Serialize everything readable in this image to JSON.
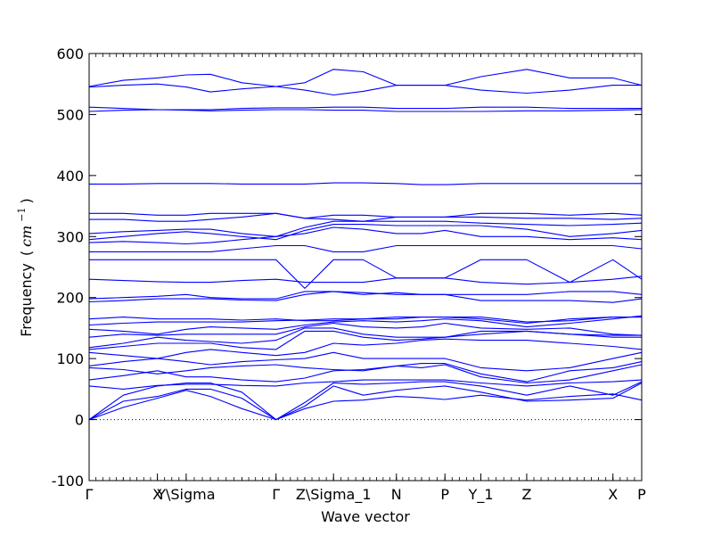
{
  "chart_data": {
    "type": "line",
    "xlabel": "Wave vector",
    "ylabel": {
      "text": "Frequency",
      "unit_open": "(",
      "unit_italic": "cm",
      "unit_sup": "−1",
      "unit_close": ")"
    },
    "ylim": [
      -100,
      600
    ],
    "yticks": [
      -100,
      0,
      100,
      200,
      300,
      400,
      500,
      600
    ],
    "xlim": [
      0,
      6.15
    ],
    "path_labels": [
      {
        "label": "Γ",
        "x": 0
      },
      {
        "label": "X",
        "x": 0.76
      },
      {
        "label": "Y\\Sigma",
        "x": 1.08
      },
      {
        "label": "Γ",
        "x": 2.08
      },
      {
        "label": "Z\\Sigma_1",
        "x": 2.72
      },
      {
        "label": "N",
        "x": 3.42
      },
      {
        "label": "P",
        "x": 3.96
      },
      {
        "label": "Y_1",
        "x": 4.36
      },
      {
        "label": "Z",
        "x": 4.87
      },
      {
        "label": "X",
        "x": 5.83
      },
      {
        "label": "P",
        "x": 6.15
      }
    ],
    "zero_line": 0,
    "line_color": "#0000ff",
    "x": [
      0,
      0.38,
      0.76,
      1.08,
      1.35,
      1.7,
      2.08,
      2.4,
      2.72,
      3.05,
      3.42,
      3.7,
      3.96,
      4.36,
      4.87,
      5.35,
      5.83,
      6.15
    ],
    "series": [
      {
        "values": [
          0,
          20,
          35,
          48,
          38,
          18,
          0,
          18,
          30,
          32,
          38,
          36,
          33,
          40,
          32,
          38,
          42,
          32
        ]
      },
      {
        "values": [
          0,
          30,
          38,
          50,
          50,
          35,
          0,
          22,
          55,
          40,
          48,
          52,
          55,
          45,
          30,
          32,
          35,
          60
        ]
      },
      {
        "values": [
          0,
          40,
          55,
          60,
          60,
          45,
          0,
          28,
          60,
          58,
          60,
          62,
          62,
          55,
          40,
          55,
          40,
          62
        ]
      },
      {
        "values": [
          55,
          50,
          56,
          58,
          58,
          56,
          55,
          60,
          62,
          65,
          65,
          65,
          65,
          60,
          55,
          60,
          62,
          65
        ]
      },
      {
        "values": [
          65,
          72,
          80,
          70,
          70,
          65,
          62,
          68,
          80,
          82,
          88,
          85,
          90,
          70,
          60,
          65,
          80,
          90
        ]
      },
      {
        "values": [
          85,
          82,
          75,
          80,
          85,
          88,
          90,
          85,
          82,
          80,
          88,
          92,
          92,
          75,
          62,
          80,
          85,
          95
        ]
      },
      {
        "values": [
          88,
          95,
          100,
          95,
          90,
          95,
          98,
          100,
          110,
          100,
          100,
          100,
          100,
          85,
          80,
          85,
          100,
          110
        ]
      },
      {
        "values": [
          110,
          105,
          100,
          110,
          115,
          110,
          105,
          110,
          125,
          122,
          125,
          130,
          132,
          130,
          130,
          125,
          120,
          115
        ]
      },
      {
        "values": [
          115,
          120,
          125,
          125,
          125,
          118,
          115,
          145,
          145,
          135,
          130,
          132,
          135,
          140,
          145,
          140,
          135,
          135
        ]
      },
      {
        "values": [
          118,
          125,
          135,
          130,
          128,
          125,
          130,
          150,
          150,
          140,
          135,
          135,
          135,
          145,
          145,
          140,
          138,
          138
        ]
      },
      {
        "values": [
          135,
          140,
          138,
          140,
          140,
          140,
          140,
          152,
          158,
          152,
          150,
          152,
          158,
          150,
          148,
          150,
          140,
          138
        ]
      },
      {
        "values": [
          148,
          145,
          140,
          148,
          152,
          150,
          148,
          155,
          160,
          162,
          160,
          162,
          165,
          162,
          152,
          158,
          165,
          170
        ]
      },
      {
        "values": [
          155,
          158,
          160,
          160,
          160,
          160,
          162,
          163,
          165,
          165,
          165,
          168,
          168,
          168,
          160,
          162,
          168,
          168
        ]
      },
      {
        "values": [
          165,
          168,
          165,
          165,
          165,
          163,
          165,
          162,
          162,
          165,
          168,
          168,
          168,
          165,
          158,
          165,
          168,
          168
        ]
      },
      {
        "values": [
          193,
          195,
          198,
          198,
          198,
          196,
          195,
          205,
          210,
          208,
          205,
          205,
          205,
          195,
          195,
          195,
          192,
          198
        ]
      },
      {
        "values": [
          198,
          200,
          202,
          205,
          200,
          198,
          198,
          210,
          210,
          205,
          208,
          205,
          205,
          205,
          205,
          210,
          210,
          205
        ]
      },
      {
        "values": [
          230,
          228,
          226,
          225,
          225,
          228,
          230,
          225,
          225,
          225,
          232,
          232,
          232,
          225,
          222,
          225,
          230,
          235
        ]
      },
      {
        "values": [
          262,
          262,
          262,
          262,
          262,
          262,
          262,
          215,
          262,
          262,
          232,
          232,
          232,
          262,
          262,
          225,
          262,
          230
        ]
      },
      {
        "values": [
          275,
          275,
          275,
          275,
          275,
          280,
          285,
          285,
          275,
          275,
          285,
          285,
          285,
          285,
          285,
          285,
          285,
          280
        ]
      },
      {
        "values": [
          290,
          292,
          290,
          288,
          290,
          295,
          300,
          305,
          315,
          312,
          305,
          305,
          310,
          300,
          300,
          295,
          298,
          295
        ]
      },
      {
        "values": [
          295,
          300,
          305,
          308,
          305,
          300,
          295,
          310,
          320,
          320,
          318,
          318,
          318,
          318,
          312,
          300,
          305,
          310
        ]
      },
      {
        "values": [
          305,
          308,
          310,
          312,
          312,
          305,
          300,
          315,
          325,
          325,
          325,
          325,
          325,
          322,
          320,
          318,
          320,
          322
        ]
      },
      {
        "values": [
          328,
          328,
          325,
          325,
          328,
          332,
          338,
          330,
          328,
          325,
          332,
          332,
          332,
          332,
          330,
          330,
          328,
          330
        ]
      },
      {
        "values": [
          338,
          338,
          335,
          335,
          338,
          338,
          338,
          330,
          335,
          335,
          332,
          332,
          332,
          338,
          338,
          335,
          338,
          335
        ]
      },
      {
        "values": [
          386,
          386,
          387,
          387,
          387,
          386,
          386,
          386,
          388,
          388,
          387,
          385,
          385,
          387,
          387,
          387,
          387,
          387
        ]
      },
      {
        "values": [
          505,
          507,
          508,
          507,
          506,
          507,
          508,
          508,
          507,
          507,
          505,
          505,
          505,
          505,
          506,
          506,
          507,
          508
        ]
      },
      {
        "values": [
          512,
          510,
          508,
          508,
          508,
          510,
          511,
          511,
          512,
          512,
          510,
          510,
          510,
          512,
          512,
          510,
          510,
          510
        ]
      },
      {
        "values": [
          545,
          548,
          550,
          545,
          537,
          542,
          546,
          540,
          532,
          538,
          548,
          548,
          548,
          540,
          535,
          540,
          548,
          548
        ]
      },
      {
        "values": [
          546,
          556,
          560,
          565,
          566,
          552,
          546,
          552,
          574,
          570,
          548,
          548,
          548,
          562,
          574,
          560,
          560,
          548
        ]
      }
    ]
  }
}
